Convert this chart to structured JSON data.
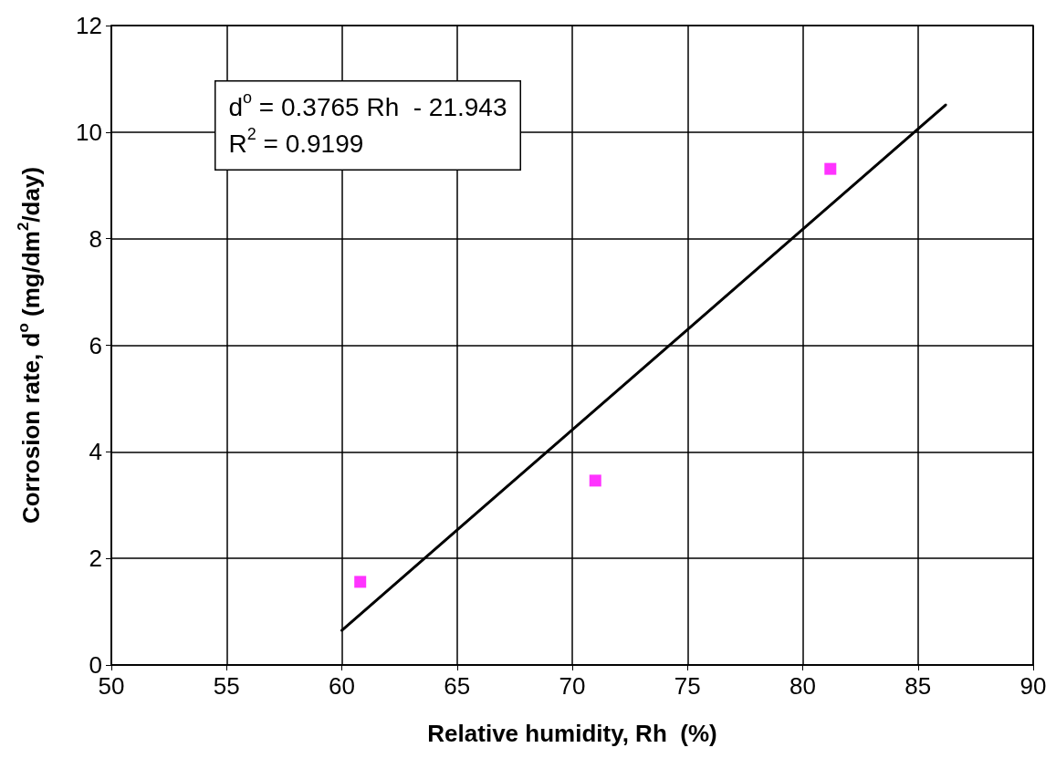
{
  "chart_data": {
    "type": "scatter",
    "xlabel": "Relative humidity, Rh  (%)",
    "ylabel": "Corrosion rate, d$^{o}$ (mg/dm$^{2}$/day)",
    "annotations": [
      "d$^{o}$ = 0.3765 Rh  - 21.943",
      "R$^{2}$ = 0.9199"
    ],
    "series": [
      {
        "type": "scatter",
        "color": "#ff00ff",
        "marker": "square",
        "x": [
          60.8,
          71.0,
          81.2
        ],
        "values": [
          1.56,
          3.46,
          9.31
        ]
      },
      {
        "type": "line",
        "color": "#000000",
        "marker": "none",
        "line_style": "solid",
        "x": [
          60.0,
          86.2
        ],
        "values": [
          0.65,
          10.51
        ]
      }
    ],
    "xlim": [
      50,
      90
    ],
    "xticks": [
      50,
      55,
      60,
      65,
      70,
      75,
      80,
      85,
      90
    ],
    "ylim": [
      0,
      12
    ],
    "yticks": [
      0,
      2,
      4,
      6,
      8,
      10,
      12
    ],
    "grid": true
  }
}
